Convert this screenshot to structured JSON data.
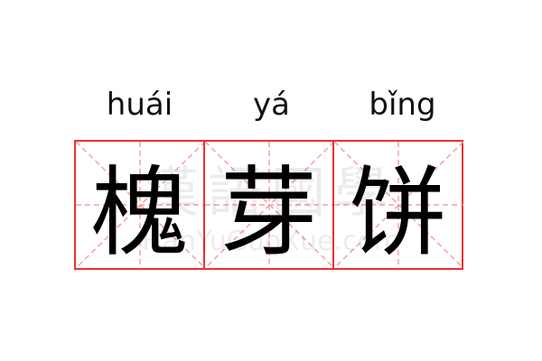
{
  "pinyin": [
    "huái",
    "yá",
    "bǐng"
  ],
  "characters": [
    "槐",
    "芽",
    "饼"
  ],
  "watermark": {
    "chars": "漢語國學",
    "site": "HanYuGuoXue.com"
  },
  "colors": {
    "grid_border": "#f03030",
    "grid_guides": "#f5a0a0",
    "text": "#000000"
  }
}
